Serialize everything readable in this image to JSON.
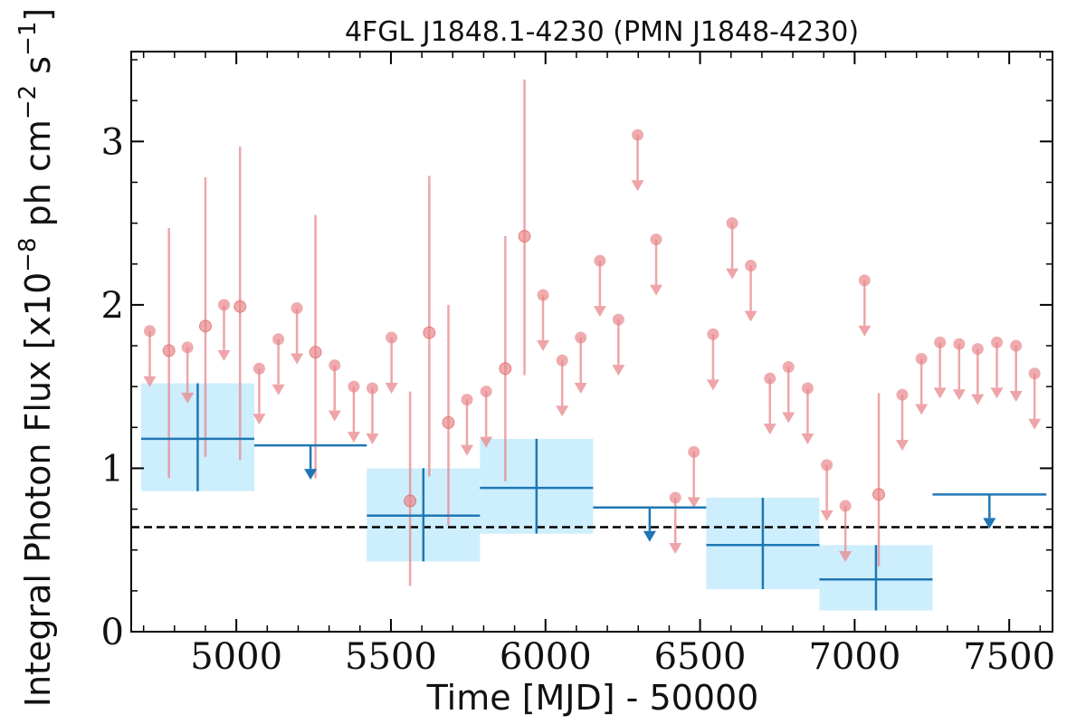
{
  "chart_data": {
    "type": "scatter",
    "title": "4FGL J1848.1-4230 (PMN J1848-4230)",
    "xlabel": "Time [MJD] - 50000",
    "ylabel_parts": [
      "Integral Photon Flux [x10",
      "−8",
      " ph cm",
      "−2",
      " s",
      "−1",
      "]"
    ],
    "xlim": [
      4660,
      7640
    ],
    "ylim": [
      0,
      3.55
    ],
    "x_ticks": [
      5000,
      5500,
      6000,
      6500,
      7000,
      7500
    ],
    "y_ticks": [
      0,
      1,
      2,
      3
    ],
    "x_tick_labels": [
      "5000",
      "5500",
      "6000",
      "6500",
      "7000",
      "7500"
    ],
    "y_tick_labels": [
      "0",
      "1",
      "2",
      "3"
    ],
    "grid": false,
    "reference_level": 0.64,
    "colors": {
      "fine": "#e8878c",
      "coarse": "#1f77b4",
      "band": "#cdeefc",
      "reference": "#000000"
    },
    "fine_bins": {
      "detections": [
        {
          "x": 4782,
          "y": 1.72,
          "ylo": 0.94,
          "yhi": 2.47
        },
        {
          "x": 4900,
          "y": 1.87,
          "ylo": 1.07,
          "yhi": 2.78
        },
        {
          "x": 5012,
          "y": 1.99,
          "ylo": 1.05,
          "yhi": 2.97
        },
        {
          "x": 5256,
          "y": 1.71,
          "ylo": 0.94,
          "yhi": 2.55
        },
        {
          "x": 5562,
          "y": 0.8,
          "ylo": 0.28,
          "yhi": 1.47
        },
        {
          "x": 5624,
          "y": 1.83,
          "ylo": 0.95,
          "yhi": 2.79
        },
        {
          "x": 5686,
          "y": 1.28,
          "ylo": 0.65,
          "yhi": 2.0
        },
        {
          "x": 5870,
          "y": 1.61,
          "ylo": 0.92,
          "yhi": 2.42
        },
        {
          "x": 5932,
          "y": 2.42,
          "ylo": 1.57,
          "yhi": 3.38
        },
        {
          "x": 7078,
          "y": 0.84,
          "ylo": 0.4,
          "yhi": 1.46
        }
      ],
      "upper_limits": [
        {
          "x": 4720,
          "y": 1.84
        },
        {
          "x": 4842,
          "y": 1.74
        },
        {
          "x": 4960,
          "y": 2.0
        },
        {
          "x": 5074,
          "y": 1.61
        },
        {
          "x": 5136,
          "y": 1.79
        },
        {
          "x": 5196,
          "y": 1.98
        },
        {
          "x": 5318,
          "y": 1.63
        },
        {
          "x": 5380,
          "y": 1.5
        },
        {
          "x": 5440,
          "y": 1.49
        },
        {
          "x": 5502,
          "y": 1.8
        },
        {
          "x": 5746,
          "y": 1.42
        },
        {
          "x": 5808,
          "y": 1.47
        },
        {
          "x": 5992,
          "y": 2.06
        },
        {
          "x": 6054,
          "y": 1.66
        },
        {
          "x": 6114,
          "y": 1.8
        },
        {
          "x": 6176,
          "y": 2.27
        },
        {
          "x": 6236,
          "y": 1.91
        },
        {
          "x": 6298,
          "y": 3.04
        },
        {
          "x": 6358,
          "y": 2.4
        },
        {
          "x": 6420,
          "y": 0.82
        },
        {
          "x": 6480,
          "y": 1.1
        },
        {
          "x": 6542,
          "y": 1.82
        },
        {
          "x": 6604,
          "y": 2.5
        },
        {
          "x": 6664,
          "y": 2.24
        },
        {
          "x": 6726,
          "y": 1.55
        },
        {
          "x": 6786,
          "y": 1.62
        },
        {
          "x": 6848,
          "y": 1.49
        },
        {
          "x": 6910,
          "y": 1.02
        },
        {
          "x": 6970,
          "y": 0.77
        },
        {
          "x": 7032,
          "y": 2.15
        },
        {
          "x": 7154,
          "y": 1.45
        },
        {
          "x": 7216,
          "y": 1.67
        },
        {
          "x": 7276,
          "y": 1.77
        },
        {
          "x": 7338,
          "y": 1.76
        },
        {
          "x": 7398,
          "y": 1.73
        },
        {
          "x": 7460,
          "y": 1.77
        },
        {
          "x": 7522,
          "y": 1.75
        },
        {
          "x": 7582,
          "y": 1.58
        }
      ]
    },
    "coarse_bins": {
      "detections": [
        {
          "x0": 4692,
          "x1": 5058,
          "y": 1.18,
          "ylo": 0.86,
          "yhi": 1.52
        },
        {
          "x0": 5422,
          "x1": 5788,
          "y": 0.71,
          "ylo": 0.43,
          "yhi": 1.0
        },
        {
          "x0": 5788,
          "x1": 6154,
          "y": 0.88,
          "ylo": 0.6,
          "yhi": 1.18
        },
        {
          "x0": 6520,
          "x1": 6886,
          "y": 0.53,
          "ylo": 0.26,
          "yhi": 0.82
        },
        {
          "x0": 6886,
          "x1": 7252,
          "y": 0.32,
          "ylo": 0.13,
          "yhi": 0.53
        }
      ],
      "upper_limits": [
        {
          "x0": 5058,
          "x1": 5422,
          "y": 1.14
        },
        {
          "x0": 6154,
          "x1": 6520,
          "y": 0.76
        },
        {
          "x0": 7252,
          "x1": 7620,
          "y": 0.84
        }
      ]
    }
  }
}
